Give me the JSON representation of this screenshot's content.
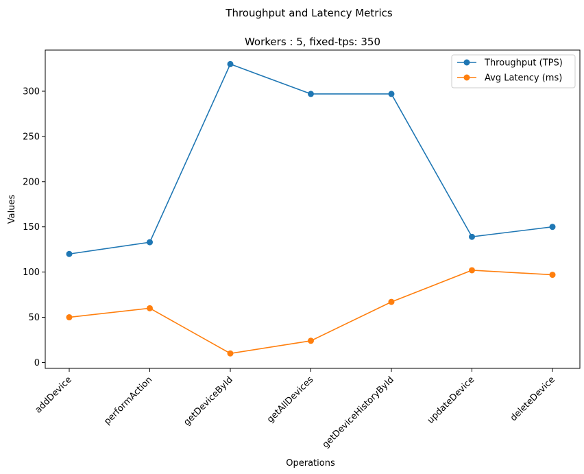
{
  "chart_data": {
    "type": "line",
    "suptitle": "Throughput and Latency Metrics",
    "title": "Workers : 5, fixed-tps: 350",
    "xlabel": "Operations",
    "ylabel": "Values",
    "categories": [
      "addDevice",
      "performAction",
      "getDeviceById",
      "getAllDevices",
      "getDeviceHistoryById",
      "updateDevice",
      "deleteDevice"
    ],
    "series": [
      {
        "name": "Throughput (TPS)",
        "color": "#1f77b4",
        "marker": "circle",
        "values": [
          120,
          133,
          330,
          297,
          297,
          139,
          150
        ]
      },
      {
        "name": "Avg Latency (ms)",
        "color": "#ff7f0e",
        "marker": "circle",
        "values": [
          50,
          60,
          10,
          24,
          67,
          102,
          97
        ]
      }
    ],
    "ylim": [
      -6.5,
      345.5
    ],
    "yticks": [
      0,
      50,
      100,
      150,
      200,
      250,
      300
    ],
    "xtick_rotation": 45,
    "grid": false,
    "legend_position": "upper right"
  }
}
